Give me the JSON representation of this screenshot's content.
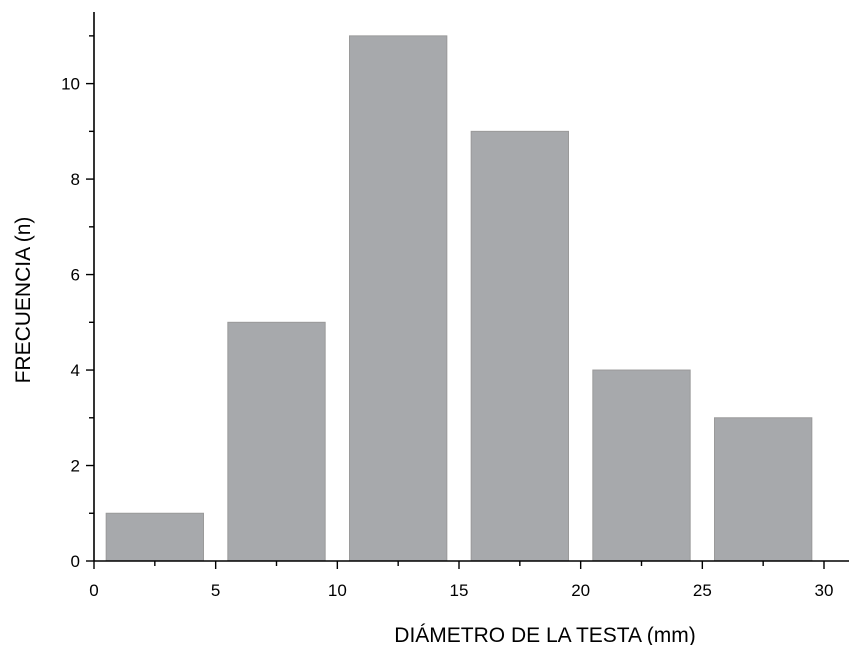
{
  "chart_data": {
    "type": "bar",
    "bar_color": "#a7a9ac",
    "bins": [
      {
        "x0": 0.5,
        "x1": 4.5,
        "value": 1
      },
      {
        "x0": 5.5,
        "x1": 9.5,
        "value": 5
      },
      {
        "x0": 10.5,
        "x1": 14.5,
        "value": 11
      },
      {
        "x0": 15.5,
        "x1": 19.5,
        "value": 9
      },
      {
        "x0": 20.5,
        "x1": 24.5,
        "value": 4
      },
      {
        "x0": 25.5,
        "x1": 29.5,
        "value": 3
      }
    ],
    "xlabel": "DIÁMETRO DE LA TESTA (mm)",
    "ylabel": "FRECUENCIA (n)",
    "xlim": [
      0,
      32
    ],
    "ylim": [
      0,
      11.5
    ],
    "x_ticks": [
      0,
      5,
      10,
      15,
      20,
      25,
      30
    ],
    "x_tick_labels": [
      "0",
      "5",
      "10",
      "15",
      "20",
      "25",
      "30"
    ],
    "y_ticks": [
      0,
      2,
      4,
      6,
      8,
      10
    ],
    "y_tick_labels": [
      "0",
      "2",
      "4",
      "6",
      "8",
      "10"
    ],
    "grid": false,
    "legend": "none"
  }
}
